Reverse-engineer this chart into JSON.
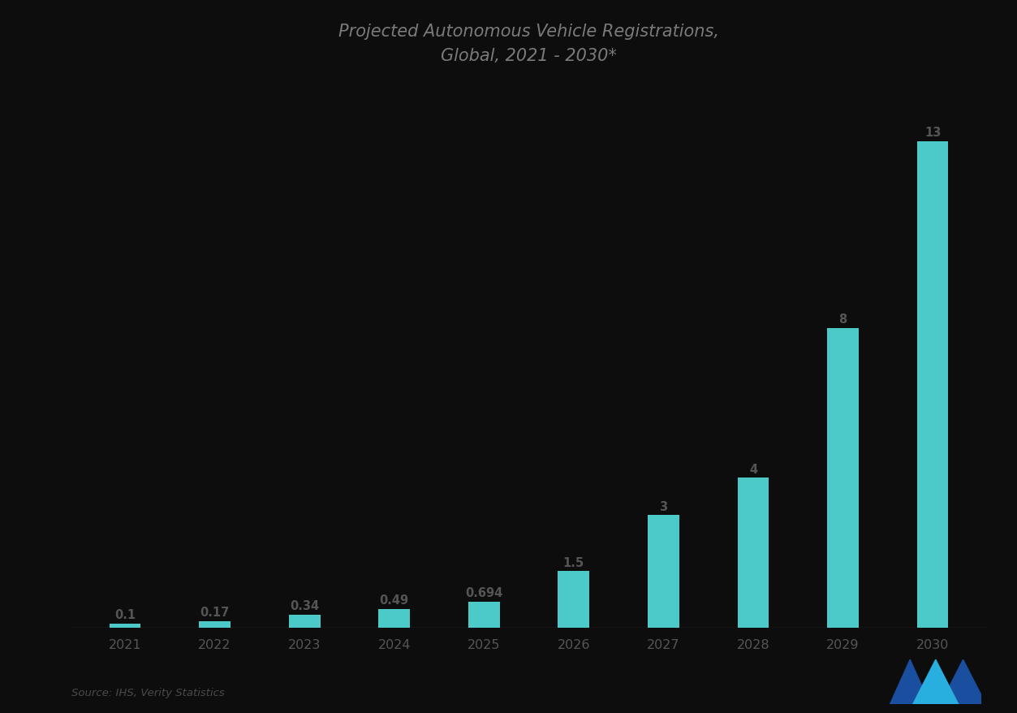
{
  "title_line1": "Projected Autonomous Vehicle Registrations,",
  "title_line2": "Global, 2021 - 2030*",
  "years": [
    "2021",
    "2022",
    "2023",
    "2024",
    "2025",
    "2026",
    "2027",
    "2028",
    "2029",
    "2030"
  ],
  "values": [
    0.1,
    0.17,
    0.34,
    0.49,
    0.694,
    1.5,
    3.0,
    4.0,
    8.0,
    13.0
  ],
  "bar_labels": [
    "0.1",
    "0.17",
    "0.34",
    "0.49",
    "0.694",
    "1.5",
    "3",
    "4",
    "8",
    "13"
  ],
  "bar_color": "#4CC9C9",
  "background_color": "#0d0d0d",
  "title_color": "#7a7a7a",
  "tick_color": "#555555",
  "bar_label_color": "#555555",
  "baseline_color": "#888888",
  "source_text": "Source: IHS, Verity Statistics",
  "ylim": [
    0,
    14.5
  ],
  "bar_width": 0.35,
  "logo_color_dark": "#1a4fa0",
  "logo_color_light": "#29aee0"
}
